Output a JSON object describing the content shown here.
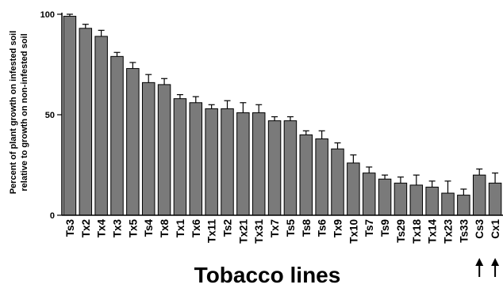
{
  "chart_data": {
    "type": "bar",
    "title": "",
    "xlabel": "Tobacco lines",
    "ylabel_lines": [
      "Percent of plant growth on infested soil",
      "relative to growth on non-infested soil"
    ],
    "ylim": [
      0,
      100
    ],
    "yticks": [
      0,
      50,
      100
    ],
    "grid": false,
    "bar_color": "#7a7a7a",
    "categories": [
      "Ts3",
      "Tx2",
      "Tx4",
      "Tx3",
      "Tx5",
      "Ts4",
      "Tx8",
      "Tx1",
      "Tx6",
      "Tx11",
      "Ts2",
      "Tx21",
      "Tx31",
      "Tx7",
      "Ts5",
      "Ts8",
      "Ts6",
      "Tx9",
      "Tx10",
      "Ts7",
      "Ts9",
      "Ts29",
      "Tx18",
      "Tx14",
      "Tx23",
      "Ts33",
      "Cs3",
      "Cx1"
    ],
    "values": [
      99,
      93,
      89,
      79,
      73,
      66,
      65,
      58,
      56,
      53,
      53,
      51,
      51,
      47,
      47,
      40,
      38,
      33,
      26,
      21,
      18,
      16,
      15,
      14,
      11,
      10,
      20,
      16
    ],
    "errors": [
      1,
      2,
      3,
      2,
      3,
      4,
      3,
      2,
      3,
      2,
      4,
      5,
      4,
      2,
      2,
      2,
      4,
      3,
      4,
      3,
      2,
      3,
      5,
      3,
      6,
      3,
      3,
      5
    ],
    "marked_categories": [
      "Cs3",
      "Cx1"
    ]
  }
}
